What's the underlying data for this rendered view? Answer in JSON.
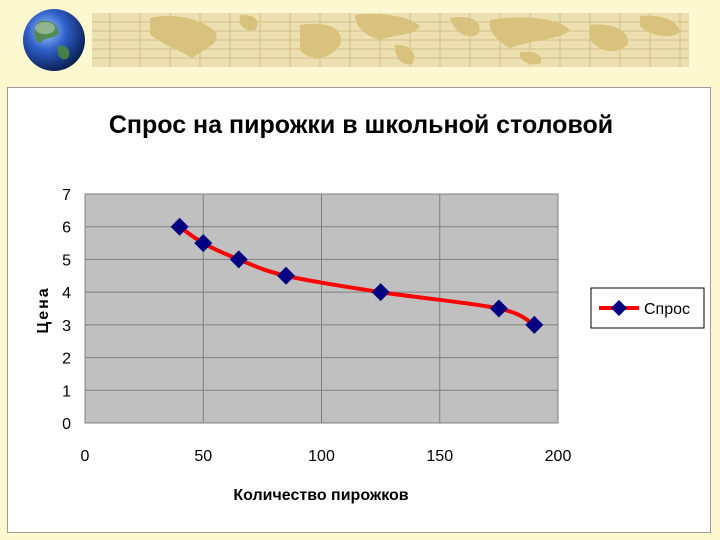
{
  "colors": {
    "background": "#fdf8cf",
    "plot_area": "#c0c0c0",
    "series_line": "#ff0000",
    "marker": "#000080",
    "map_tint": "#e2cc8e"
  },
  "chart_data": {
    "type": "line",
    "title": "Спрос на пирожки в школьной столовой",
    "xlabel": "Количество пирожков",
    "ylabel": "Цена",
    "xlim": [
      0,
      200
    ],
    "ylim": [
      0,
      7
    ],
    "xticks": [
      "0",
      "50",
      "100",
      "150",
      "200"
    ],
    "yticks": [
      "0",
      "1",
      "2",
      "3",
      "4",
      "5",
      "6",
      "7"
    ],
    "grid": true,
    "legend_position": "right",
    "series": [
      {
        "name": "Спрос",
        "x": [
          40,
          50,
          65,
          85,
          125,
          175,
          190
        ],
        "y": [
          6,
          5.5,
          5,
          4.5,
          4,
          3.5,
          3
        ]
      }
    ]
  }
}
